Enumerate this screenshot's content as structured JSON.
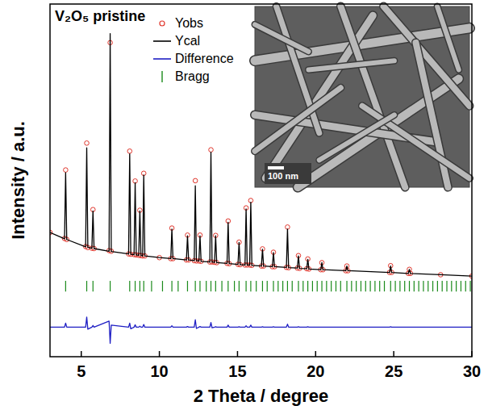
{
  "chart_data": {
    "type": "line",
    "title": "V₂O₅ pristine",
    "x_label": "2 Theta / degree",
    "y_label": "Intensity / a.u.",
    "annotations": [
      "100 nm"
    ],
    "x": [
      3,
      3.93,
      4,
      4.07,
      5.28,
      5.35,
      5.42,
      5.68,
      5.75,
      5.82,
      6.78,
      6.85,
      6.92,
      8.03,
      8.1,
      8.17,
      8.38,
      8.45,
      8.52,
      8.68,
      8.75,
      8.82,
      8.93,
      9,
      9.07,
      10,
      10.73,
      10.8,
      10.87,
      11.73,
      11.8,
      11.87,
      12.23,
      12.3,
      12.37,
      12.53,
      12.6,
      12.67,
      13.23,
      13.3,
      13.37,
      13.53,
      13.6,
      13.67,
      14.33,
      14.4,
      14.47,
      15.03,
      15.1,
      15.17,
      15.48,
      15.55,
      15.62,
      15.78,
      15.85,
      15.92,
      16.53,
      16.6,
      16.67,
      17.23,
      17.3,
      17.37,
      18.13,
      18.2,
      18.27,
      18.83,
      18.9,
      18.97,
      19.43,
      19.5,
      19.57,
      20.33,
      20.4,
      20.47,
      21.93,
      22,
      22.07,
      24.73,
      24.8,
      24.87,
      25.93,
      26,
      26.07,
      28,
      30
    ],
    "series": [
      {
        "name": "Yobs",
        "type": "scatter",
        "marker": "circle",
        "color": "#e0352b",
        "values": [
          37.0,
          35.2,
          55.6,
          34.9,
          32.8,
          63.6,
          32.5,
          32.3,
          43.8,
          32.2,
          31.6,
          93.5,
          31.4,
          30.6,
          61.2,
          30.5,
          30.4,
          52.3,
          30.3,
          30.2,
          43.6,
          30.1,
          30.0,
          54.6,
          30.0,
          29.5,
          29.2,
          38.3,
          29.2,
          28.8,
          36.2,
          28.8,
          28.6,
          52.4,
          28.5,
          28.5,
          36.2,
          28.4,
          28.2,
          61.6,
          28.2,
          28.1,
          36.1,
          28.0,
          27.8,
          40.4,
          27.7,
          27.5,
          34.1,
          27.4,
          27.3,
          44.3,
          27.3,
          27.3,
          46.5,
          27.2,
          27.0,
          32.1,
          27.0,
          26.8,
          31.1,
          26.8,
          26.6,
          38.6,
          26.5,
          26.4,
          30.1,
          26.3,
          26.2,
          29.1,
          26.1,
          25.9,
          28.0,
          25.9,
          25.6,
          27.0,
          25.6,
          25.1,
          27.1,
          25.1,
          24.8,
          26.0,
          24.8,
          24.4,
          24.0
        ]
      },
      {
        "name": "Ycal",
        "type": "line",
        "line_style": "solid",
        "color": "#000000",
        "values": [
          37.0,
          35.1,
          54.8,
          34.9,
          32.7,
          62.2,
          32.6,
          32.3,
          43.4,
          32.2,
          31.4,
          96.2,
          31.3,
          30.6,
          60.4,
          30.5,
          30.4,
          51.8,
          30.3,
          30.2,
          43.4,
          30.1,
          30.0,
          54.1,
          30.0,
          29.5,
          29.2,
          38.0,
          29.2,
          28.8,
          36.0,
          28.8,
          28.6,
          50.9,
          28.6,
          28.5,
          36.0,
          28.4,
          28.2,
          60.9,
          28.2,
          28.1,
          36.0,
          28.0,
          27.8,
          40.0,
          27.7,
          27.5,
          34.0,
          27.4,
          27.3,
          44.0,
          27.3,
          27.3,
          46.0,
          27.2,
          27.0,
          32.0,
          27.0,
          26.8,
          31.0,
          26.8,
          26.6,
          38.0,
          26.5,
          26.4,
          30.0,
          26.3,
          26.2,
          29.0,
          26.1,
          25.9,
          28.0,
          25.9,
          25.6,
          27.0,
          25.6,
          25.1,
          27.0,
          25.1,
          24.8,
          26.0,
          24.8,
          24.4,
          24.0
        ]
      },
      {
        "name": "Difference",
        "type": "line",
        "line_style": "solid",
        "color": "#1f1fc4",
        "values": [
          8.8,
          8.8,
          10.0,
          8.8,
          8.8,
          11.8,
          8.2,
          8.8,
          9.3,
          8.8,
          10.6,
          4.0,
          9.4,
          8.8,
          10.0,
          8.3,
          8.8,
          9.5,
          8.8,
          8.8,
          9.1,
          8.8,
          8.8,
          9.6,
          8.8,
          8.8,
          8.8,
          9.2,
          8.8,
          8.8,
          9.0,
          8.8,
          8.8,
          11.0,
          8.4,
          8.8,
          9.0,
          8.8,
          8.8,
          10.2,
          8.6,
          8.8,
          8.9,
          8.8,
          8.8,
          9.4,
          8.8,
          8.8,
          8.9,
          8.8,
          8.8,
          9.2,
          8.8,
          8.8,
          9.4,
          8.8,
          8.8,
          8.9,
          8.8,
          8.8,
          8.9,
          8.8,
          8.8,
          9.7,
          8.8,
          8.8,
          8.9,
          8.8,
          8.8,
          8.9,
          8.8,
          8.8,
          8.8,
          8.8,
          8.8,
          8.8,
          8.8,
          8.8,
          8.9,
          8.8,
          8.8,
          8.8,
          8.8,
          8.8,
          8.8
        ]
      },
      {
        "name": "Bragg",
        "type": "tick",
        "color": "#1a8a1a",
        "x": [
          4.0,
          5.35,
          5.75,
          6.85,
          8.1,
          8.45,
          8.75,
          9.0,
          9.5,
          10.2,
          10.8,
          11.2,
          11.8,
          12.3,
          12.6,
          13.0,
          13.3,
          13.6,
          14.0,
          14.4,
          14.8,
          15.1,
          15.55,
          15.85,
          16.2,
          16.6,
          16.9,
          17.3,
          17.6,
          17.9,
          18.2,
          18.5,
          18.9,
          19.2,
          19.5,
          19.8,
          20.1,
          20.4,
          20.7,
          21.0,
          21.3,
          21.6,
          22.0,
          22.3,
          22.6,
          22.9,
          23.2,
          23.5,
          23.8,
          24.1,
          24.4,
          24.8,
          25.1,
          25.4,
          25.7,
          26.0,
          26.3,
          26.6,
          26.9,
          27.2,
          27.5,
          27.8,
          28.1,
          28.4,
          28.7,
          29.0,
          29.3,
          29.6,
          29.9
        ]
      }
    ],
    "xlim": [
      3,
      30
    ],
    "xticks": [
      5,
      10,
      15,
      20,
      25,
      30
    ],
    "ylim": [
      0,
      105
    ],
    "tick_labels": "x",
    "grid": false,
    "legend": "upper center"
  }
}
